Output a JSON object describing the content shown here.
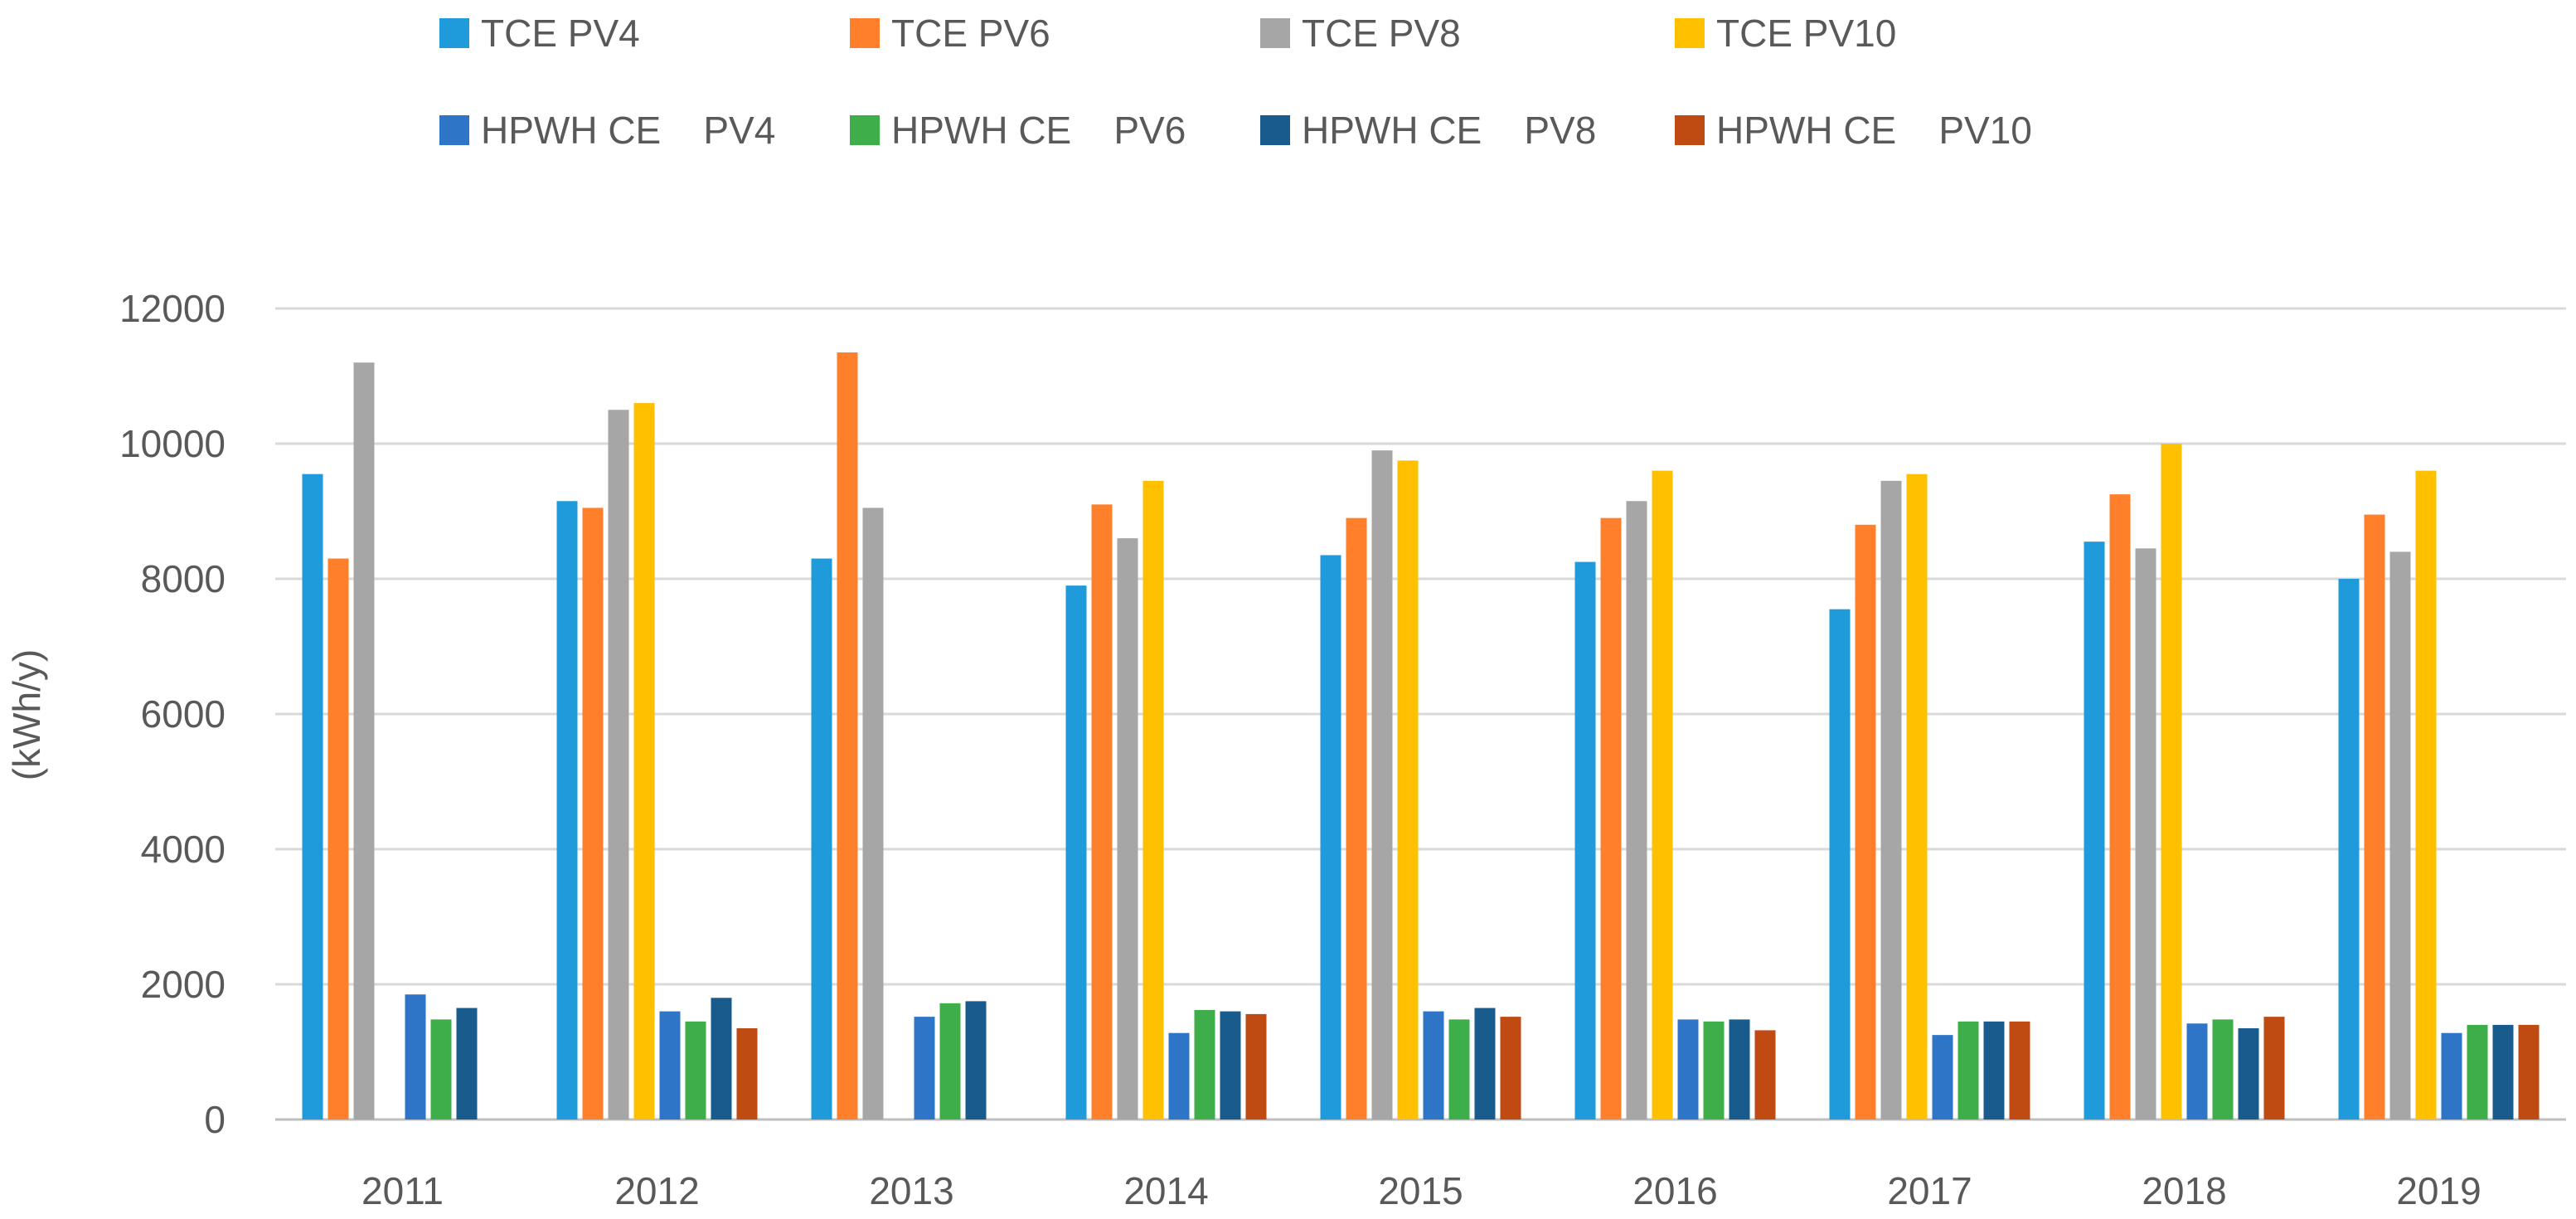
{
  "chart_data": {
    "type": "bar",
    "title": "",
    "xlabel": "",
    "ylabel": "(kWh/y)",
    "ylim": [
      0,
      12000
    ],
    "yticks": [
      0,
      2000,
      4000,
      6000,
      8000,
      10000,
      12000
    ],
    "grid": true,
    "legend_position": "top",
    "categories": [
      "2011",
      "2012",
      "2013",
      "2014",
      "2015",
      "2016",
      "2017",
      "2018",
      "2019"
    ],
    "series": [
      {
        "name": "TCE PV4",
        "color": "#1F9BDB",
        "values": [
          9550,
          9150,
          8300,
          7900,
          8350,
          8250,
          7550,
          8550,
          8000
        ]
      },
      {
        "name": "TCE PV6",
        "color": "#FF7F2A",
        "values": [
          8300,
          9050,
          11350,
          9100,
          8900,
          8900,
          8800,
          9250,
          8950
        ]
      },
      {
        "name": "TCE PV8",
        "color": "#A6A6A6",
        "values": [
          11200,
          10500,
          9050,
          8600,
          9900,
          9150,
          9450,
          8450,
          8400
        ]
      },
      {
        "name": "TCE PV10",
        "color": "#FFC000",
        "values": [
          null,
          10600,
          null,
          9450,
          9750,
          9600,
          9550,
          10000,
          9600
        ]
      },
      {
        "name": "HPWH CE    PV4",
        "color": "#2E75C8",
        "values": [
          1850,
          1600,
          1520,
          1280,
          1600,
          1480,
          1250,
          1420,
          1280
        ]
      },
      {
        "name": "HPWH CE    PV6",
        "color": "#3DAE49",
        "values": [
          1480,
          1450,
          1720,
          1620,
          1480,
          1450,
          1450,
          1480,
          1400
        ]
      },
      {
        "name": "HPWH CE    PV8",
        "color": "#1A5B8E",
        "values": [
          1650,
          1800,
          1750,
          1600,
          1650,
          1480,
          1450,
          1350,
          1400
        ]
      },
      {
        "name": "HPWH CE    PV10",
        "color": "#BF4A12",
        "values": [
          null,
          1350,
          null,
          1560,
          1520,
          1320,
          1450,
          1520,
          1400
        ]
      }
    ]
  }
}
